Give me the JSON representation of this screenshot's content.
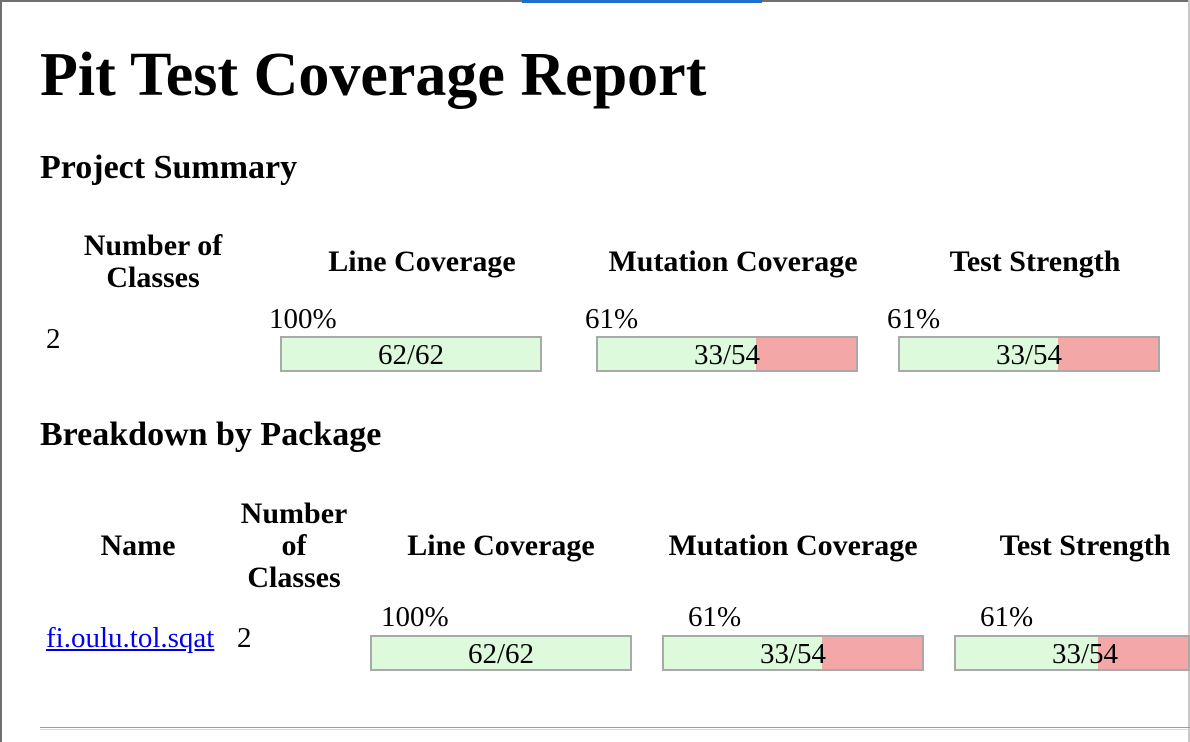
{
  "page": {
    "title": "Pit Test Coverage Report"
  },
  "project_summary": {
    "heading": "Project Summary",
    "headers": {
      "classes": "Number of Classes",
      "line_coverage": "Line Coverage",
      "mutation_coverage": "Mutation Coverage",
      "test_strength": "Test Strength"
    },
    "classes": "2",
    "line_coverage": {
      "percent": "100%",
      "ratio": "62/62",
      "covered_fraction": 1.0
    },
    "mutation_coverage": {
      "percent": "61%",
      "ratio": "33/54",
      "covered_fraction": 0.611
    },
    "test_strength": {
      "percent": "61%",
      "ratio": "33/54",
      "covered_fraction": 0.611
    }
  },
  "breakdown": {
    "heading": "Breakdown by Package",
    "headers": {
      "name": "Name",
      "classes_line1": "Number",
      "classes_line2": "of",
      "classes_line3": "Classes",
      "line_coverage": "Line Coverage",
      "mutation_coverage": "Mutation Coverage",
      "test_strength": "Test Strength"
    },
    "rows": [
      {
        "name": "fi.oulu.tol.sqat",
        "classes": "2",
        "line_coverage": {
          "percent": "100%",
          "ratio": "62/62",
          "covered_fraction": 1.0
        },
        "mutation_coverage": {
          "percent": "61%",
          "ratio": "33/54",
          "covered_fraction": 0.611
        },
        "test_strength": {
          "percent": "61%",
          "ratio": "33/54",
          "covered_fraction": 0.611
        }
      }
    ]
  },
  "colors": {
    "covered": "#ddfadd",
    "uncovered": "#f3a7a7",
    "link": "#0000ee"
  }
}
